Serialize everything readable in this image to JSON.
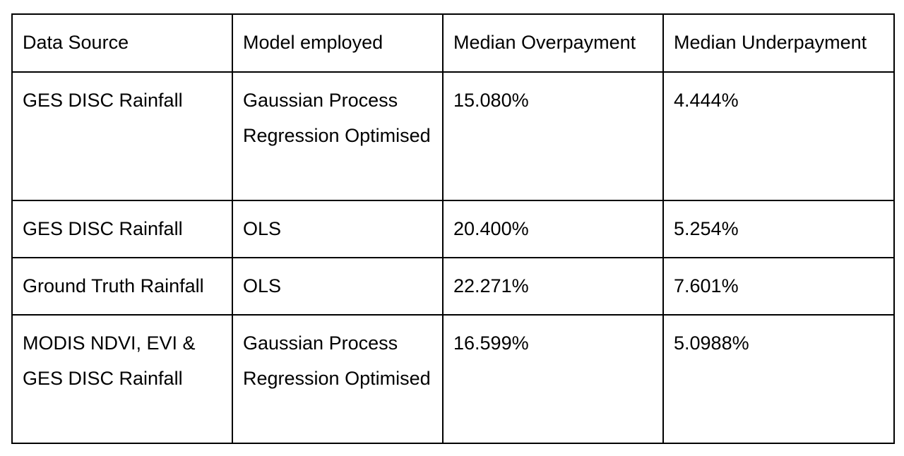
{
  "table": {
    "headers": [
      "Data Source",
      "Model employed",
      "Median Overpayment",
      "Median Underpayment"
    ],
    "rows": [
      [
        "GES DISC Rainfall",
        "Gaussian Process Regression Optimised",
        "15.080%",
        "4.444%"
      ],
      [
        "GES DISC Rainfall",
        "OLS",
        "20.400%",
        "5.254%"
      ],
      [
        "Ground Truth Rainfall",
        "OLS",
        "22.271%",
        "7.601%"
      ],
      [
        "MODIS NDVI, EVI & GES DISC Rainfall",
        "Gaussian Process Regression Optimised",
        "16.599%",
        "5.0988%"
      ]
    ]
  }
}
